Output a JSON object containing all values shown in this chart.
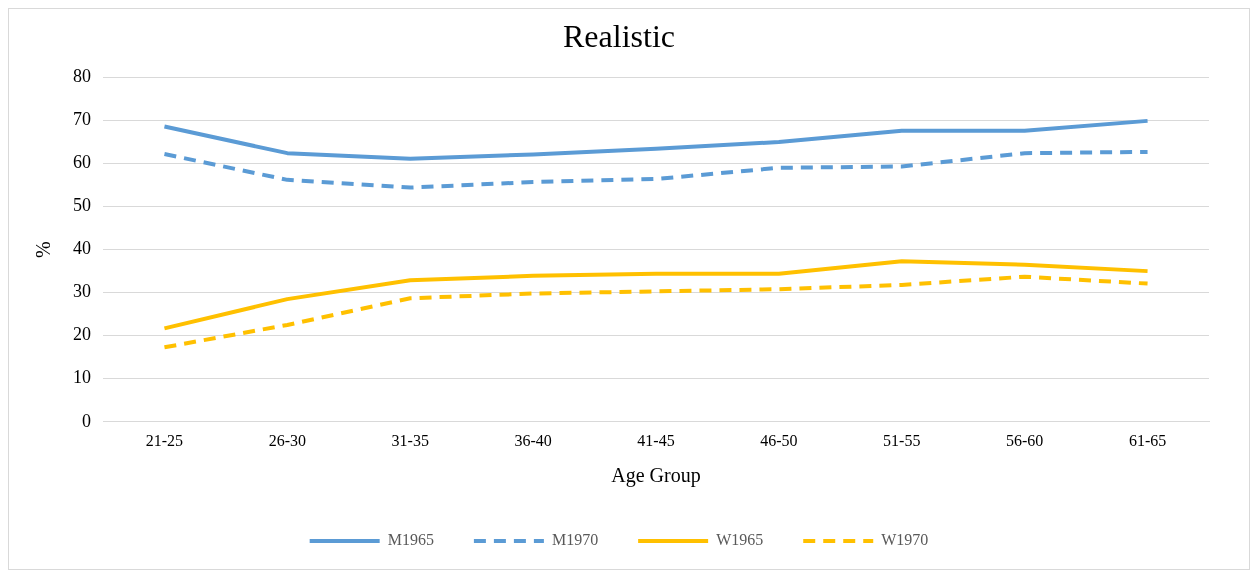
{
  "chart_data": {
    "type": "line",
    "title": "Realistic",
    "xlabel": "Age Group",
    "ylabel": "%",
    "categories": [
      "21-25",
      "26-30",
      "31-35",
      "36-40",
      "41-45",
      "46-50",
      "51-55",
      "56-60",
      "61-65"
    ],
    "series": [
      {
        "name": "M1965",
        "color": "#5b9bd5",
        "line_style": "solid",
        "values": [
          68.6,
          62.4,
          61.1,
          62.1,
          63.4,
          65,
          67.6,
          67.6,
          69.9
        ]
      },
      {
        "name": "M1970",
        "color": "#5b9bd5",
        "line_style": "dashed",
        "values": [
          62.2,
          56.2,
          54.4,
          55.7,
          56.4,
          59,
          59.3,
          62.4,
          62.7
        ]
      },
      {
        "name": "W1965",
        "color": "#ffc000",
        "line_style": "solid",
        "values": [
          21.7,
          28.5,
          32.9,
          33.9,
          34.4,
          34.4,
          37.3,
          36.5,
          35
        ]
      },
      {
        "name": "W1970",
        "color": "#ffc000",
        "line_style": "dashed",
        "values": [
          17.3,
          22.5,
          28.7,
          29.8,
          30.3,
          30.8,
          31.8,
          33.7,
          32.1
        ]
      }
    ],
    "ylim": [
      0,
      80
    ],
    "yticks": [
      0,
      10,
      20,
      30,
      40,
      50,
      60,
      70,
      80
    ],
    "grid": "y",
    "legend": "bottom",
    "marker": "none"
  }
}
